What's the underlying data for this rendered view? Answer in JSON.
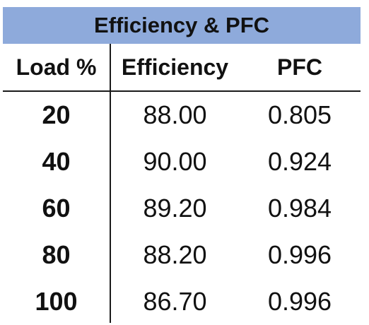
{
  "table": {
    "title": "Efficiency & PFC",
    "headers": [
      "Load %",
      "Efficiency",
      "PFC"
    ],
    "rows": [
      [
        "20",
        "88.00",
        "0.805"
      ],
      [
        "40",
        "90.00",
        "0.924"
      ],
      [
        "60",
        "89.20",
        "0.984"
      ],
      [
        "80",
        "88.20",
        "0.996"
      ],
      [
        "100",
        "86.70",
        "0.996"
      ]
    ],
    "header_fill_color": "#8eaadb"
  }
}
